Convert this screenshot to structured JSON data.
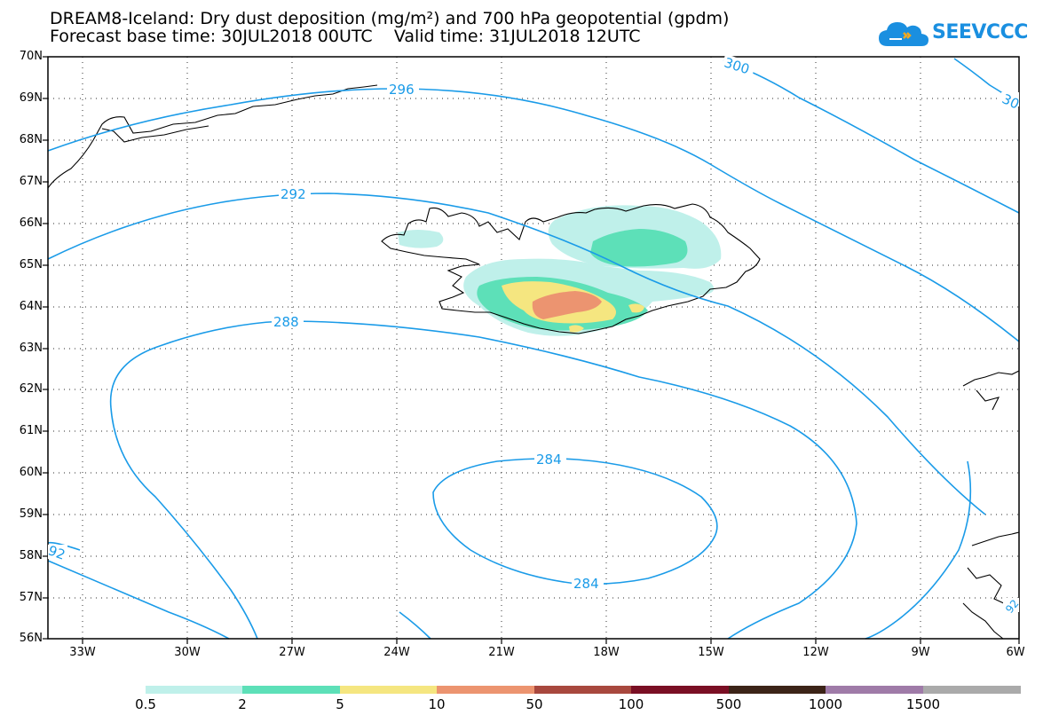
{
  "header": {
    "title_line1": "DREAM8-Iceland: Dry dust deposition (mg/m²) and 700 hPa geopotential (gpdm)",
    "forecast_label": "Forecast base time: 30JUL2018 00UTC",
    "valid_label": "Valid time: 31JUL2018 12UTC"
  },
  "logo": {
    "text": "SEEVCCC",
    "icon": "cloud-icon",
    "color": "#1a8fe0"
  },
  "map": {
    "lat_labels": [
      "70N",
      "69N",
      "68N",
      "67N",
      "66N",
      "65N",
      "64N",
      "63N",
      "62N",
      "61N",
      "60N",
      "59N",
      "58N",
      "57N",
      "56N"
    ],
    "lon_labels": [
      "33W",
      "30W",
      "27W",
      "24W",
      "21W",
      "18W",
      "15W",
      "12W",
      "9W",
      "6W"
    ],
    "contour_color": "#1a9be8",
    "contour_labels": [
      "296",
      "300",
      "30",
      "292",
      "288",
      "284",
      "284",
      "92",
      "92"
    ]
  },
  "legend": {
    "colors": [
      "#bff0ea",
      "#5de0b8",
      "#f5e680",
      "#ec9470",
      "#a8483e",
      "#7a0f24",
      "#3c2418",
      "#9f7ba8",
      "#aaaaaa"
    ],
    "labels": [
      "0.5",
      "2",
      "5",
      "10",
      "50",
      "100",
      "500",
      "1000",
      "1500"
    ]
  }
}
